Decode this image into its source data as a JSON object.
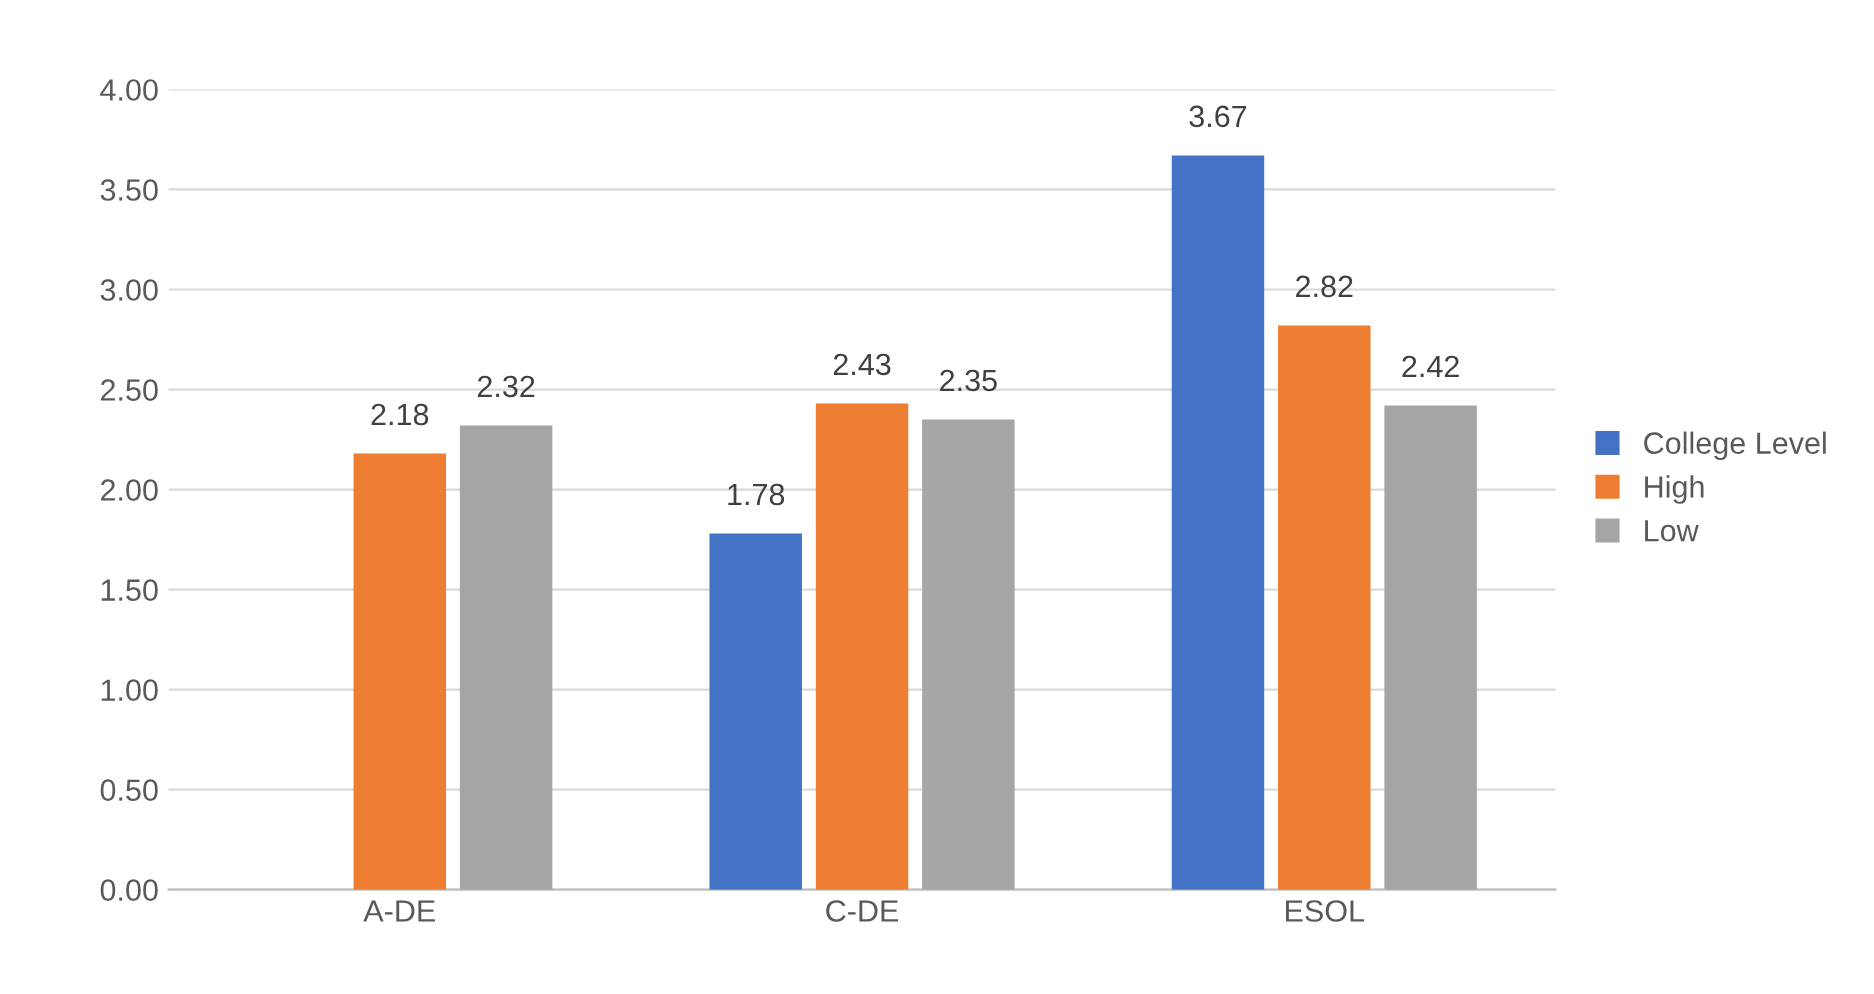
{
  "chart_data": {
    "type": "bar",
    "categories": [
      "A-DE",
      "C-DE",
      "ESOL"
    ],
    "series": [
      {
        "name": "College Level",
        "color": "#4472c4",
        "values": [
          null,
          1.78,
          3.67
        ]
      },
      {
        "name": "High",
        "color": "#ed7d31",
        "values": [
          2.18,
          2.43,
          2.82
        ]
      },
      {
        "name": "Low",
        "color": "#a5a5a5",
        "values": [
          2.32,
          2.35,
          2.42
        ]
      }
    ],
    "ylim": [
      0,
      4
    ],
    "yticks": [
      {
        "value": 0,
        "label": "0.00"
      },
      {
        "value": 0.5,
        "label": "0.50"
      },
      {
        "value": 1,
        "label": "1.00"
      },
      {
        "value": 1.5,
        "label": "1.50"
      },
      {
        "value": 2,
        "label": "2.00"
      },
      {
        "value": 2.5,
        "label": "2.50"
      },
      {
        "value": 3,
        "label": "3.00"
      },
      {
        "value": 3.5,
        "label": "3.50"
      },
      {
        "value": 4,
        "label": "4.00"
      }
    ],
    "grid": "y",
    "legend": "right",
    "data_labels": true
  }
}
